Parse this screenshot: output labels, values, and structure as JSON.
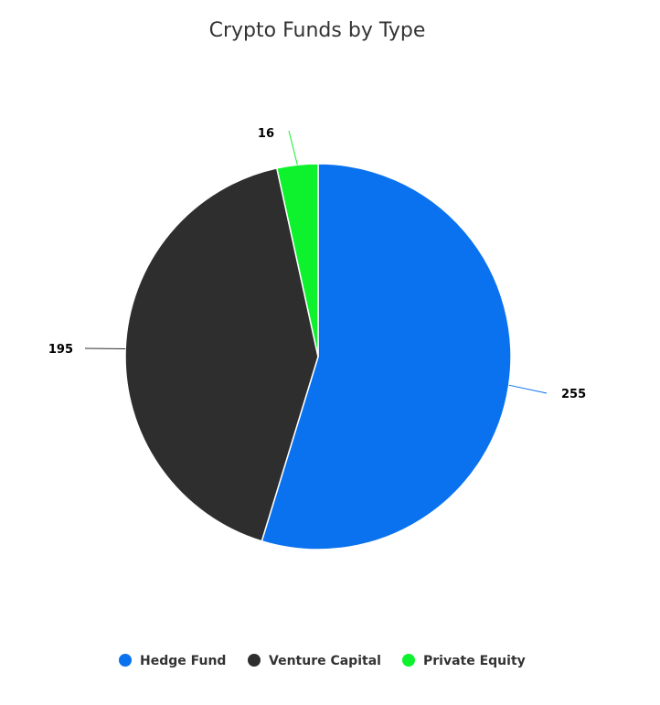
{
  "chart_data": {
    "type": "pie",
    "title": "Crypto Funds by Type",
    "categories": [
      "Hedge Fund",
      "Venture Capital",
      "Private Equity"
    ],
    "values": [
      255,
      195,
      16
    ],
    "colors": [
      "#0a72ef",
      "#2e2e2e",
      "#0ef22e"
    ],
    "legend_position": "bottom-center",
    "data_labels": [
      "255",
      "195",
      "16"
    ]
  },
  "legend": {
    "items": [
      {
        "label": "Hedge Fund",
        "color": "#0a72ef",
        "marker_icon": "circle-marker"
      },
      {
        "label": "Venture Capital",
        "color": "#2e2e2e",
        "marker_icon": "circle-marker"
      },
      {
        "label": "Private Equity",
        "color": "#0ef22e",
        "marker_icon": "circle-marker"
      }
    ]
  }
}
